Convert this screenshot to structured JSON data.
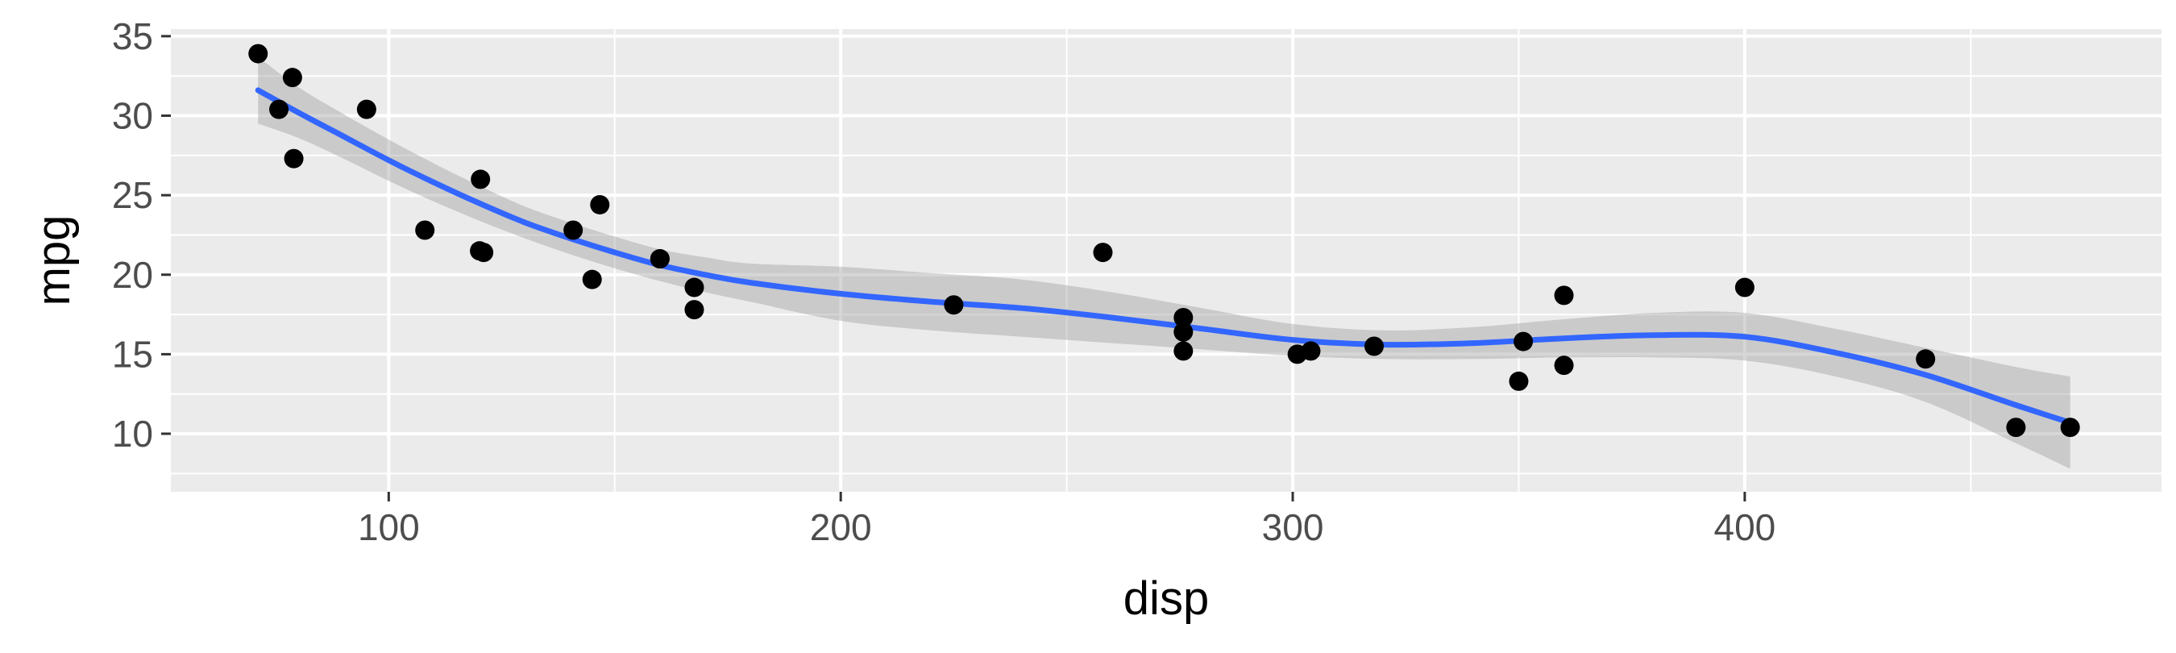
{
  "chart_data": {
    "type": "scatter",
    "title": "",
    "xlabel": "disp",
    "ylabel": "mpg",
    "xlim": [
      51.8,
      492.2
    ],
    "ylim": [
      6.35,
      35.45
    ],
    "x_ticks": [
      100,
      200,
      300,
      400
    ],
    "x_tick_labels": [
      "100",
      "200",
      "300",
      "400"
    ],
    "y_ticks": [
      10,
      15,
      20,
      25,
      30,
      35
    ],
    "y_tick_labels": [
      "10",
      "15",
      "20",
      "25",
      "30",
      "35"
    ],
    "grid": true,
    "legend": "none",
    "points": [
      {
        "x": 71.1,
        "y": 33.9
      },
      {
        "x": 75.7,
        "y": 30.4
      },
      {
        "x": 78.7,
        "y": 32.4
      },
      {
        "x": 79.0,
        "y": 27.3
      },
      {
        "x": 95.1,
        "y": 30.4
      },
      {
        "x": 108.0,
        "y": 22.8
      },
      {
        "x": 120.1,
        "y": 21.5
      },
      {
        "x": 120.3,
        "y": 26.0
      },
      {
        "x": 121.0,
        "y": 21.4
      },
      {
        "x": 140.8,
        "y": 22.8
      },
      {
        "x": 145.0,
        "y": 19.7
      },
      {
        "x": 146.7,
        "y": 24.4
      },
      {
        "x": 160.0,
        "y": 21.0
      },
      {
        "x": 160.0,
        "y": 21.0
      },
      {
        "x": 167.6,
        "y": 19.2
      },
      {
        "x": 167.6,
        "y": 17.8
      },
      {
        "x": 225.0,
        "y": 18.1
      },
      {
        "x": 258.0,
        "y": 21.4
      },
      {
        "x": 275.8,
        "y": 16.4
      },
      {
        "x": 275.8,
        "y": 17.3
      },
      {
        "x": 275.8,
        "y": 15.2
      },
      {
        "x": 301.0,
        "y": 15.0
      },
      {
        "x": 304.0,
        "y": 15.2
      },
      {
        "x": 318.0,
        "y": 15.5
      },
      {
        "x": 350.0,
        "y": 13.3
      },
      {
        "x": 351.0,
        "y": 15.8
      },
      {
        "x": 360.0,
        "y": 18.7
      },
      {
        "x": 360.0,
        "y": 14.3
      },
      {
        "x": 400.0,
        "y": 19.2
      },
      {
        "x": 440.0,
        "y": 14.7
      },
      {
        "x": 460.0,
        "y": 10.4
      },
      {
        "x": 472.0,
        "y": 10.4
      }
    ],
    "smooth": {
      "method": "loess",
      "color": "#3366FF",
      "band_color": "#999999",
      "points": [
        {
          "x": 71.1,
          "y": 31.6,
          "lo": 29.5,
          "hi": 33.7
        },
        {
          "x": 80,
          "y": 30.2,
          "lo": 28.6,
          "hi": 31.8
        },
        {
          "x": 90,
          "y": 28.7,
          "lo": 27.3,
          "hi": 30.1
        },
        {
          "x": 100,
          "y": 27.2,
          "lo": 25.9,
          "hi": 28.5
        },
        {
          "x": 110,
          "y": 25.8,
          "lo": 24.6,
          "hi": 27.0
        },
        {
          "x": 120,
          "y": 24.5,
          "lo": 23.4,
          "hi": 25.6
        },
        {
          "x": 130,
          "y": 23.3,
          "lo": 22.3,
          "hi": 24.3
        },
        {
          "x": 140,
          "y": 22.3,
          "lo": 21.3,
          "hi": 23.3
        },
        {
          "x": 150,
          "y": 21.4,
          "lo": 20.4,
          "hi": 22.4
        },
        {
          "x": 160,
          "y": 20.6,
          "lo": 19.6,
          "hi": 21.6
        },
        {
          "x": 170,
          "y": 20.0,
          "lo": 18.9,
          "hi": 21.1
        },
        {
          "x": 180,
          "y": 19.5,
          "lo": 18.3,
          "hi": 20.7
        },
        {
          "x": 200,
          "y": 18.8,
          "lo": 17.1,
          "hi": 20.5
        },
        {
          "x": 220,
          "y": 18.3,
          "lo": 16.5,
          "hi": 20.1
        },
        {
          "x": 240,
          "y": 17.9,
          "lo": 16.1,
          "hi": 19.7
        },
        {
          "x": 260,
          "y": 17.3,
          "lo": 15.7,
          "hi": 18.9
        },
        {
          "x": 280,
          "y": 16.6,
          "lo": 15.3,
          "hi": 17.9
        },
        {
          "x": 300,
          "y": 15.9,
          "lo": 14.9,
          "hi": 16.9
        },
        {
          "x": 320,
          "y": 15.6,
          "lo": 14.7,
          "hi": 16.5
        },
        {
          "x": 340,
          "y": 15.7,
          "lo": 14.7,
          "hi": 16.7
        },
        {
          "x": 360,
          "y": 16.0,
          "lo": 14.8,
          "hi": 17.2
        },
        {
          "x": 380,
          "y": 16.2,
          "lo": 14.8,
          "hi": 17.6
        },
        {
          "x": 400,
          "y": 16.1,
          "lo": 14.6,
          "hi": 17.6
        },
        {
          "x": 420,
          "y": 15.1,
          "lo": 13.6,
          "hi": 16.6
        },
        {
          "x": 440,
          "y": 13.7,
          "lo": 12.0,
          "hi": 15.4
        },
        {
          "x": 460,
          "y": 11.8,
          "lo": 9.4,
          "hi": 14.2
        },
        {
          "x": 472,
          "y": 10.7,
          "lo": 7.8,
          "hi": 13.6
        }
      ]
    }
  }
}
